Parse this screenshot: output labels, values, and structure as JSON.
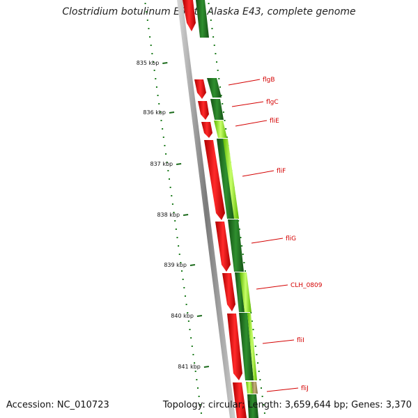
{
  "title": "Clostridium botulinum E3 str. Alaska E43, complete genome",
  "footer": {
    "accession": "Accession: NC_010723",
    "summary": "Topology: circular; Length: 3,659,644 bp; Genes: 3,370"
  },
  "colors": {
    "backbone": "#8a8a8a",
    "dots": "#1a7a1a",
    "cds_red": "#e00000",
    "cds_dark_green": "#1f7a1f",
    "cds_light_green": "#9ae03a",
    "cds_tan": "#a8905a",
    "label_red": "#d40000"
  },
  "scale_ticks": [
    "835 kbp",
    "836 kbp",
    "837 kbp",
    "838 kbp",
    "839 kbp",
    "840 kbp",
    "841 kbp"
  ],
  "genes": [
    "flgB",
    "flgC",
    "fliE",
    "fliF",
    "fliG",
    "CLH_0809",
    "fliI",
    "fliJ"
  ]
}
